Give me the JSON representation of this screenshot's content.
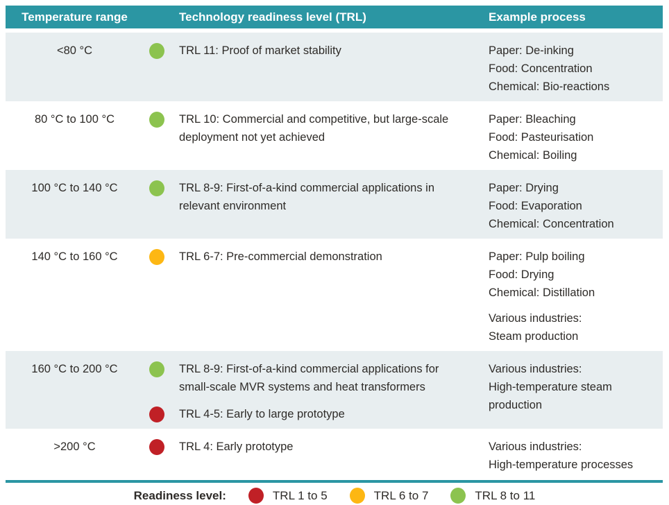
{
  "colors": {
    "header_teal": "#2B96A3",
    "row_shade": "#E8EEF0",
    "text": "#2E2B28",
    "red": "#C02026",
    "yellow": "#FDB713",
    "green": "#8CC34F"
  },
  "table": {
    "headers": {
      "temperature": "Temperature range",
      "trl": "Technology readiness level (TRL)",
      "example": "Example process"
    },
    "rows": [
      {
        "temperature": "<80 °C",
        "trl_items": [
          {
            "status": "green",
            "text": "TRL 11: Proof of market stability"
          }
        ],
        "example_groups": [
          [
            "Paper: De-inking",
            "Food: Concentration",
            "Chemical: Bio-reactions"
          ]
        ]
      },
      {
        "temperature": "80 °C to 100 °C",
        "trl_items": [
          {
            "status": "green",
            "text": "TRL 10: Commercial and competitive, but large-scale deployment not yet achieved"
          }
        ],
        "example_groups": [
          [
            "Paper: Bleaching",
            "Food: Pasteurisation",
            "Chemical: Boiling"
          ]
        ]
      },
      {
        "temperature": "100 °C to 140 °C",
        "trl_items": [
          {
            "status": "green",
            "text": "TRL 8-9: First-of-a-kind commercial applications in relevant environment"
          }
        ],
        "example_groups": [
          [
            "Paper: Drying",
            "Food: Evaporation",
            "Chemical: Concentration"
          ]
        ]
      },
      {
        "temperature": "140 °C to 160 °C",
        "trl_items": [
          {
            "status": "yellow",
            "text": "TRL 6-7: Pre-commercial demonstration"
          }
        ],
        "example_groups": [
          [
            "Paper: Pulp boiling",
            "Food: Drying",
            "Chemical: Distillation"
          ],
          [
            "Various industries:",
            "Steam production"
          ]
        ]
      },
      {
        "temperature": "160 °C to 200 °C",
        "trl_items": [
          {
            "status": "green",
            "text": "TRL 8-9: First-of-a-kind commercial applications for small-scale MVR systems and heat transformers"
          },
          {
            "status": "red",
            "text": "TRL 4-5: Early to large prototype"
          }
        ],
        "example_groups": [
          [
            "Various industries:",
            "High-temperature steam",
            "production"
          ]
        ]
      },
      {
        "temperature": ">200 °C",
        "trl_items": [
          {
            "status": "red",
            "text": "TRL 4: Early prototype"
          }
        ],
        "example_groups": [
          [
            "Various industries:",
            "High-temperature processes"
          ]
        ]
      }
    ]
  },
  "legend": {
    "label": "Readiness level:",
    "items": [
      {
        "status": "red",
        "text": "TRL 1 to 5"
      },
      {
        "status": "yellow",
        "text": "TRL 6 to 7"
      },
      {
        "status": "green",
        "text": "TRL 8 to 11"
      }
    ]
  }
}
